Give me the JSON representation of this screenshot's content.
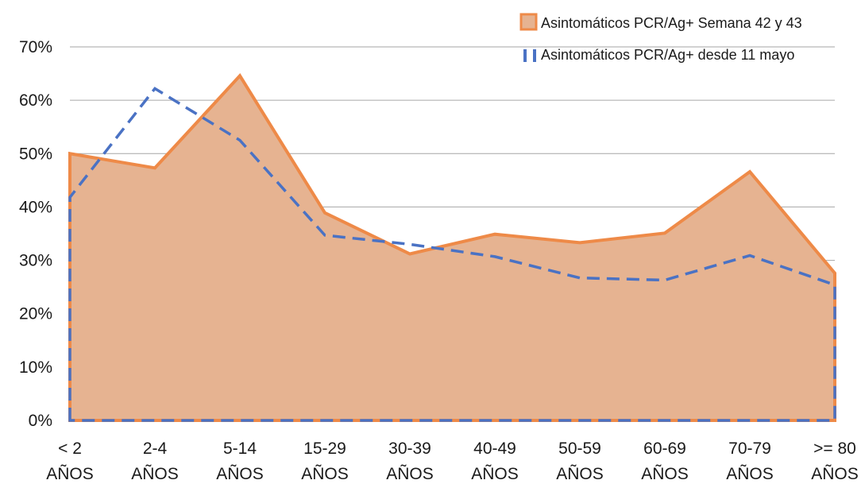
{
  "chart_data": {
    "type": "area",
    "title": "",
    "xlabel": "",
    "ylabel": "",
    "categories": [
      [
        "< 2",
        "AÑOS"
      ],
      [
        "2-4",
        "AÑOS"
      ],
      [
        "5-14",
        "AÑOS"
      ],
      [
        "15-29",
        "AÑOS"
      ],
      [
        "30-39",
        "AÑOS"
      ],
      [
        "40-49",
        "AÑOS"
      ],
      [
        "50-59",
        "AÑOS"
      ],
      [
        "60-69",
        "AÑOS"
      ],
      [
        "70-79",
        "AÑOS"
      ],
      [
        ">= 80",
        "AÑOS"
      ]
    ],
    "ylim": [
      0,
      70
    ],
    "yticks": [
      0,
      10,
      20,
      30,
      40,
      50,
      60,
      70
    ],
    "ytick_labels": [
      "0%",
      "10%",
      "20%",
      "30%",
      "40%",
      "50%",
      "60%",
      "70%"
    ],
    "grid": true,
    "legend_position": "top-right",
    "series": [
      {
        "name": "Asintomáticos PCR/Ag+ Semana 42 y 43",
        "style": "area",
        "fill_color": "#e6b391",
        "line_color": "#ee8a48",
        "values": [
          50,
          47.3,
          64.6,
          38.9,
          31.2,
          34.9,
          33.3,
          35.1,
          46.6,
          27.6
        ]
      },
      {
        "name": "Asintomáticos PCR/Ag+ desde 11 mayo",
        "style": "dashed",
        "line_color": "#4a72c4",
        "values": [
          41.8,
          62.2,
          52.5,
          34.7,
          33,
          30.7,
          26.7,
          26.3,
          30.9,
          25.4
        ]
      }
    ]
  }
}
